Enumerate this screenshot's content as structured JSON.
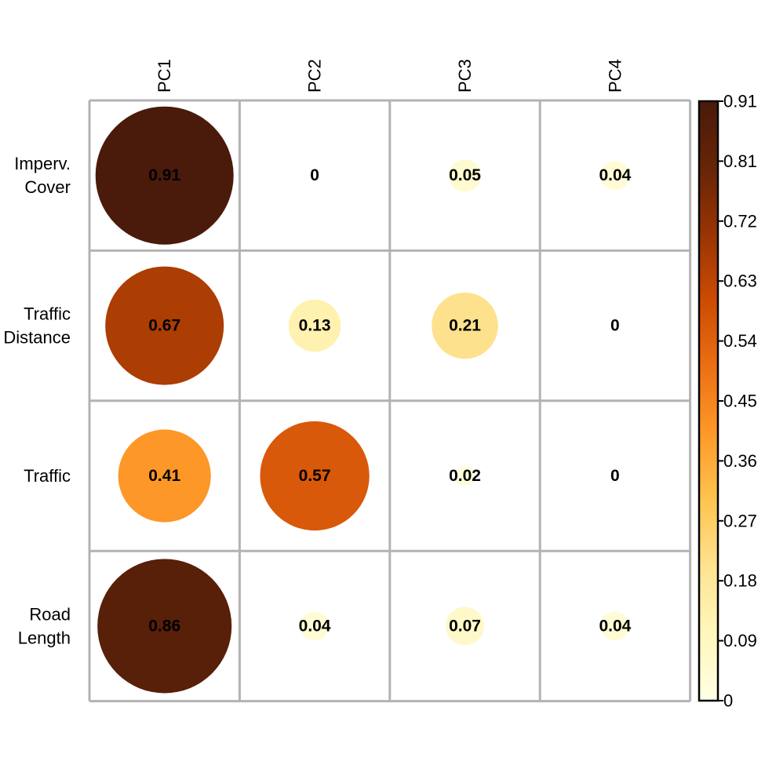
{
  "chart_data": {
    "type": "heatmap",
    "title": "",
    "xlabel": "",
    "ylabel": "",
    "columns": [
      "PC1",
      "PC2",
      "PC3",
      "PC4"
    ],
    "rows": [
      [
        "Imperv.",
        "Cover"
      ],
      [
        "Traffic",
        "Distance"
      ],
      [
        "Traffic"
      ],
      [
        "Road",
        "Length"
      ]
    ],
    "values": [
      [
        0.91,
        0,
        0.05,
        0.04
      ],
      [
        0.67,
        0.13,
        0.21,
        0
      ],
      [
        0.41,
        0.57,
        0.02,
        0
      ],
      [
        0.86,
        0.04,
        0.07,
        0.04
      ]
    ],
    "value_labels": [
      [
        "0.91",
        "0",
        "0.05",
        "0.04"
      ],
      [
        "0.67",
        "0.13",
        "0.21",
        "0"
      ],
      [
        "0.41",
        "0.57",
        "0.02",
        "0"
      ],
      [
        "0.86",
        "0.04",
        "0.07",
        "0.04"
      ]
    ],
    "color_range": [
      0,
      0.91
    ],
    "colorbar_ticks": [
      "0",
      "0.09",
      "0.18",
      "0.27",
      "0.36",
      "0.45",
      "0.54",
      "0.63",
      "0.72",
      "0.81",
      "0.91"
    ],
    "colorbar_position": "right",
    "marker": "circle",
    "grid": true,
    "colors": {
      "gradient": [
        "#ffffe5",
        "#fff7bc",
        "#fee391",
        "#fec44f",
        "#fe9929",
        "#ec7014",
        "#cc4c02",
        "#993404",
        "#662506",
        "#4a1a0b"
      ],
      "grid": "#b3b3b3",
      "text": "#000000"
    }
  }
}
